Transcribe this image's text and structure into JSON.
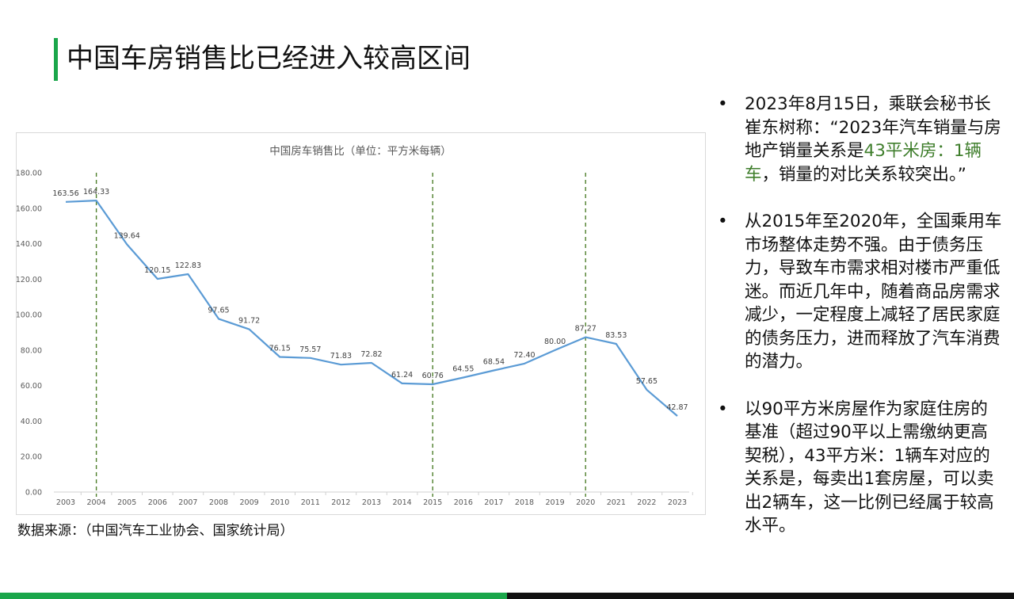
{
  "page_title": "中国车房销售比已经进入较高区间",
  "source_note": "数据来源：（中国汽车工业协会、国家统计局）",
  "bullet_symbol": "•",
  "bullets": [
    {
      "segments": [
        {
          "text": "2023年8月15日，乘联会秘书长崔东树称：“2023年汽车销量与房地产销量关系是",
          "highlight": false
        },
        {
          "text": "43平米房：1辆车",
          "highlight": true
        },
        {
          "text": "，销量的对比关系较突出。”",
          "highlight": false
        }
      ]
    },
    {
      "segments": [
        {
          "text": "从2015年至2020年，全国乘用车市场整体走势不强。由于债务压力，导致车市需求相对楼市严重低迷。而近几年中，随着商品房需求减少，一定程度上减轻了居民家庭的债务压力，进而释放了汽车消费的潜力。",
          "highlight": false
        }
      ]
    },
    {
      "segments": [
        {
          "text": "以90平方米房屋作为家庭住房的基准（超过90平以上需缴纳更高契税），43平方米：1辆车对应的关系是，每卖出1套房屋，可以卖出2辆车，这一比例已经属于较高水平。",
          "highlight": false
        }
      ]
    }
  ],
  "colors": {
    "accent_green": "#1aa64a",
    "highlight_text": "#3f7e2c",
    "line": "#5b9bd5",
    "marker_line": "#4e7f2b"
  },
  "chart_data": {
    "type": "line",
    "title": "中国房车销售比（单位：平方米每辆）",
    "xlabel": "",
    "ylabel": "",
    "x": [
      "2003",
      "2004",
      "2005",
      "2006",
      "2007",
      "2008",
      "2009",
      "2010",
      "2011",
      "2012",
      "2013",
      "2014",
      "2015",
      "2016",
      "2017",
      "2018",
      "2019",
      "2020",
      "2021",
      "2022",
      "2023"
    ],
    "series": [
      {
        "values": [
          163.56,
          164.33,
          139.64,
          120.15,
          122.83,
          97.65,
          91.72,
          76.15,
          75.57,
          71.83,
          72.82,
          61.24,
          60.76,
          64.55,
          68.54,
          72.4,
          80.0,
          87.27,
          83.53,
          57.65,
          42.87
        ]
      }
    ],
    "data_labels": [
      "163.56",
      "164.33",
      "139.64",
      "120.15",
      "122.83",
      "97.65",
      "91.72",
      "76.15",
      "75.57",
      "71.83",
      "72.82",
      "61.24",
      "60.76",
      "64.55",
      "68.54",
      "72.40",
      "80.00",
      "87.27",
      "83.53",
      "57.65",
      "42.87"
    ],
    "ylim": [
      0,
      180
    ],
    "yticks": [
      "0.00",
      "20.00",
      "40.00",
      "60.00",
      "80.00",
      "100.00",
      "120.00",
      "140.00",
      "160.00",
      "180.00"
    ],
    "ytick_values": [
      0,
      20,
      40,
      60,
      80,
      100,
      120,
      140,
      160,
      180
    ],
    "vertical_markers": [
      "2004",
      "2015",
      "2020"
    ],
    "grid": false,
    "legend": "none"
  }
}
